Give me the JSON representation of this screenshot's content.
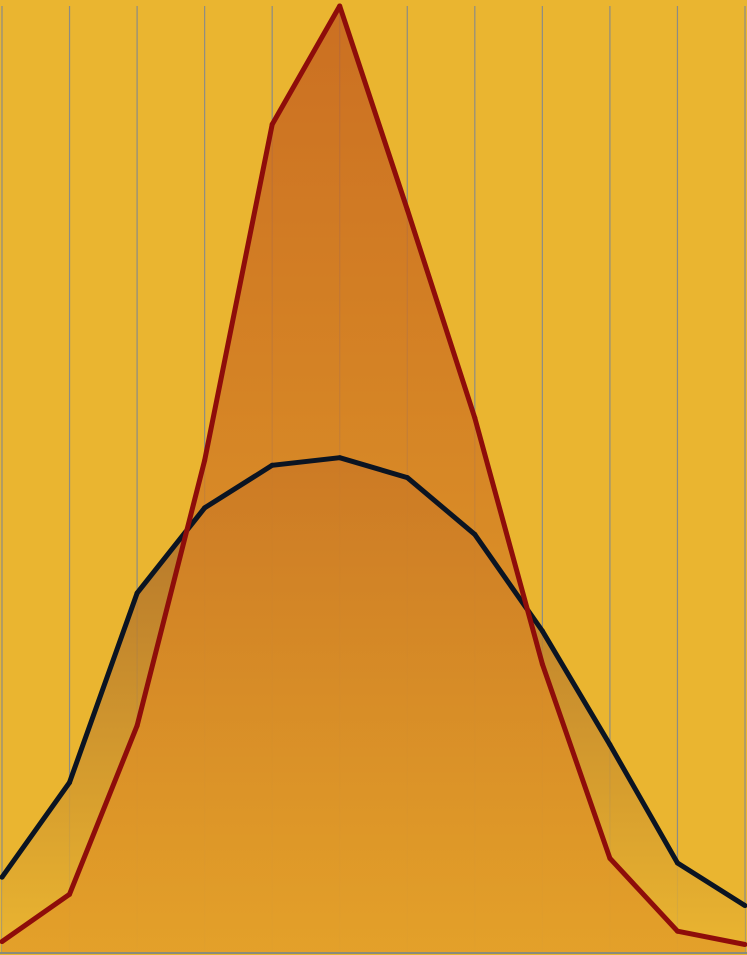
{
  "chart_data": {
    "type": "area",
    "title": "",
    "xlabel": "",
    "ylabel": "",
    "x": [
      0,
      1,
      2,
      3,
      4,
      5,
      6,
      7,
      8,
      9,
      10,
      11
    ],
    "ylim": [
      0,
      100
    ],
    "grid": {
      "vertical": true,
      "horizontal": false
    },
    "background_color": "#EAB530",
    "series": [
      {
        "values": [
          8,
          18,
          38,
          47,
          51.5,
          52.3,
          50.2,
          44.2,
          34,
          22,
          9.5,
          5
        ],
        "line_color": "#0B1422",
        "fill_top_color": "#A5632A",
        "fill_bottom_color": "#EAB530"
      },
      {
        "values": [
          1.2,
          6.2,
          24,
          52,
          87.5,
          100,
          78.5,
          56.5,
          30.5,
          10,
          2.3,
          0.9
        ],
        "line_color": "#8E0D0A",
        "fill_top_color": "#C4601F",
        "fill_bottom_color": "#E29C28"
      }
    ]
  }
}
